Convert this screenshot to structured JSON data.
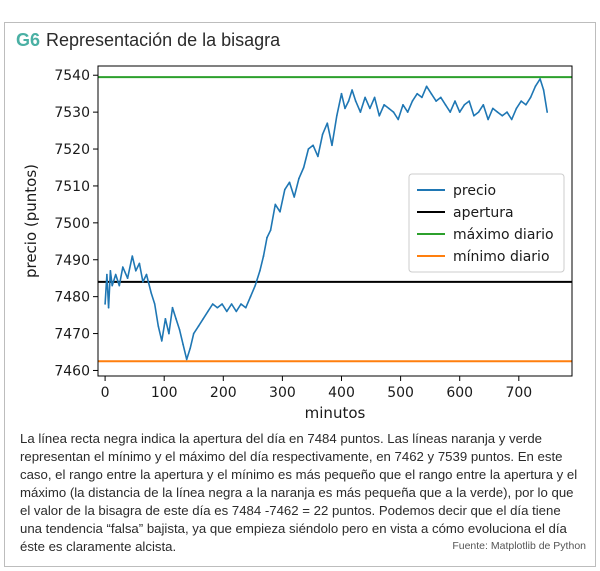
{
  "figure": {
    "tag": "G6",
    "title": "Representación de la bisagra",
    "caption": "La línea recta negra indica la apertura del día en 7484 puntos. Las líneas naranja y verde representan el mínimo y el máximo del día respectivamente, en 7462 y 7539 puntos. En este caso, el rango entre la apertura y el mínimo es más pequeño que el rango entre la apertura y el máximo (la distancia de la línea negra a la naranja es más pequeña que a la verde), por lo que el valor de la bisagra de este día es 7484 -7462 = 22 puntos. Podemos decir que el día tiene una tendencia “falsa” bajista, ya que empieza siéndolo pero en vista a cómo evoluciona el día éste es claramente alcista.",
    "source": "Fuente: Matplotlib de Python"
  },
  "chart_data": {
    "type": "line",
    "title": "",
    "xlabel": "minutos",
    "ylabel": "precio (puntos)",
    "xlim": [
      -12,
      790
    ],
    "ylim": [
      7458.5,
      7542.5
    ],
    "xticks": [
      0,
      100,
      200,
      300,
      400,
      500,
      600,
      700
    ],
    "yticks": [
      7460,
      7470,
      7480,
      7490,
      7500,
      7510,
      7520,
      7530,
      7540
    ],
    "grid": false,
    "legend_position": "center-right",
    "series": [
      {
        "name": "precio",
        "color": "#1f77b4",
        "x": [
          0,
          3,
          6,
          9,
          12,
          18,
          24,
          30,
          38,
          46,
          52,
          58,
          64,
          70,
          78,
          84,
          90,
          96,
          102,
          108,
          114,
          120,
          126,
          132,
          138,
          144,
          150,
          158,
          166,
          174,
          182,
          190,
          198,
          206,
          214,
          222,
          230,
          238,
          246,
          254,
          262,
          268,
          274,
          280,
          288,
          296,
          304,
          312,
          320,
          328,
          336,
          344,
          352,
          360,
          368,
          376,
          384,
          392,
          400,
          406,
          412,
          418,
          424,
          432,
          440,
          448,
          456,
          464,
          472,
          480,
          488,
          496,
          504,
          512,
          520,
          528,
          536,
          544,
          552,
          560,
          568,
          576,
          584,
          592,
          600,
          608,
          616,
          624,
          632,
          640,
          648,
          656,
          664,
          672,
          680,
          688,
          696,
          704,
          712,
          720,
          728,
          736,
          742,
          748
        ],
        "values": [
          7478,
          7486,
          7477,
          7487,
          7483,
          7486,
          7483,
          7488,
          7485,
          7491,
          7487,
          7489,
          7484,
          7486,
          7481,
          7478,
          7472,
          7468,
          7474,
          7470,
          7477,
          7474,
          7471,
          7467,
          7463,
          7466,
          7470,
          7472,
          7474,
          7476,
          7478,
          7477,
          7478,
          7476,
          7478,
          7476,
          7478,
          7477,
          7480,
          7483,
          7487,
          7491,
          7496,
          7498,
          7505,
          7503,
          7509,
          7511,
          7507,
          7512,
          7515,
          7520,
          7521,
          7518,
          7524,
          7527,
          7521,
          7529,
          7535,
          7531,
          7533,
          7536,
          7533,
          7530,
          7534,
          7531,
          7534,
          7529,
          7532,
          7531,
          7530,
          7528,
          7532,
          7530,
          7533,
          7535,
          7534,
          7537,
          7535,
          7533,
          7534,
          7532,
          7530,
          7533,
          7530,
          7532,
          7533,
          7529,
          7530,
          7532,
          7528,
          7531,
          7530,
          7529,
          7530,
          7528,
          7531,
          7533,
          7532,
          7534,
          7537,
          7539,
          7536,
          7530
        ]
      },
      {
        "name": "apertura",
        "color": "#000000",
        "hline": 7484
      },
      {
        "name": "máximo diario",
        "color": "#2ca02c",
        "hline": 7539.5
      },
      {
        "name": "mínimo diario",
        "color": "#ff7f0e",
        "hline": 7462.5
      }
    ]
  }
}
